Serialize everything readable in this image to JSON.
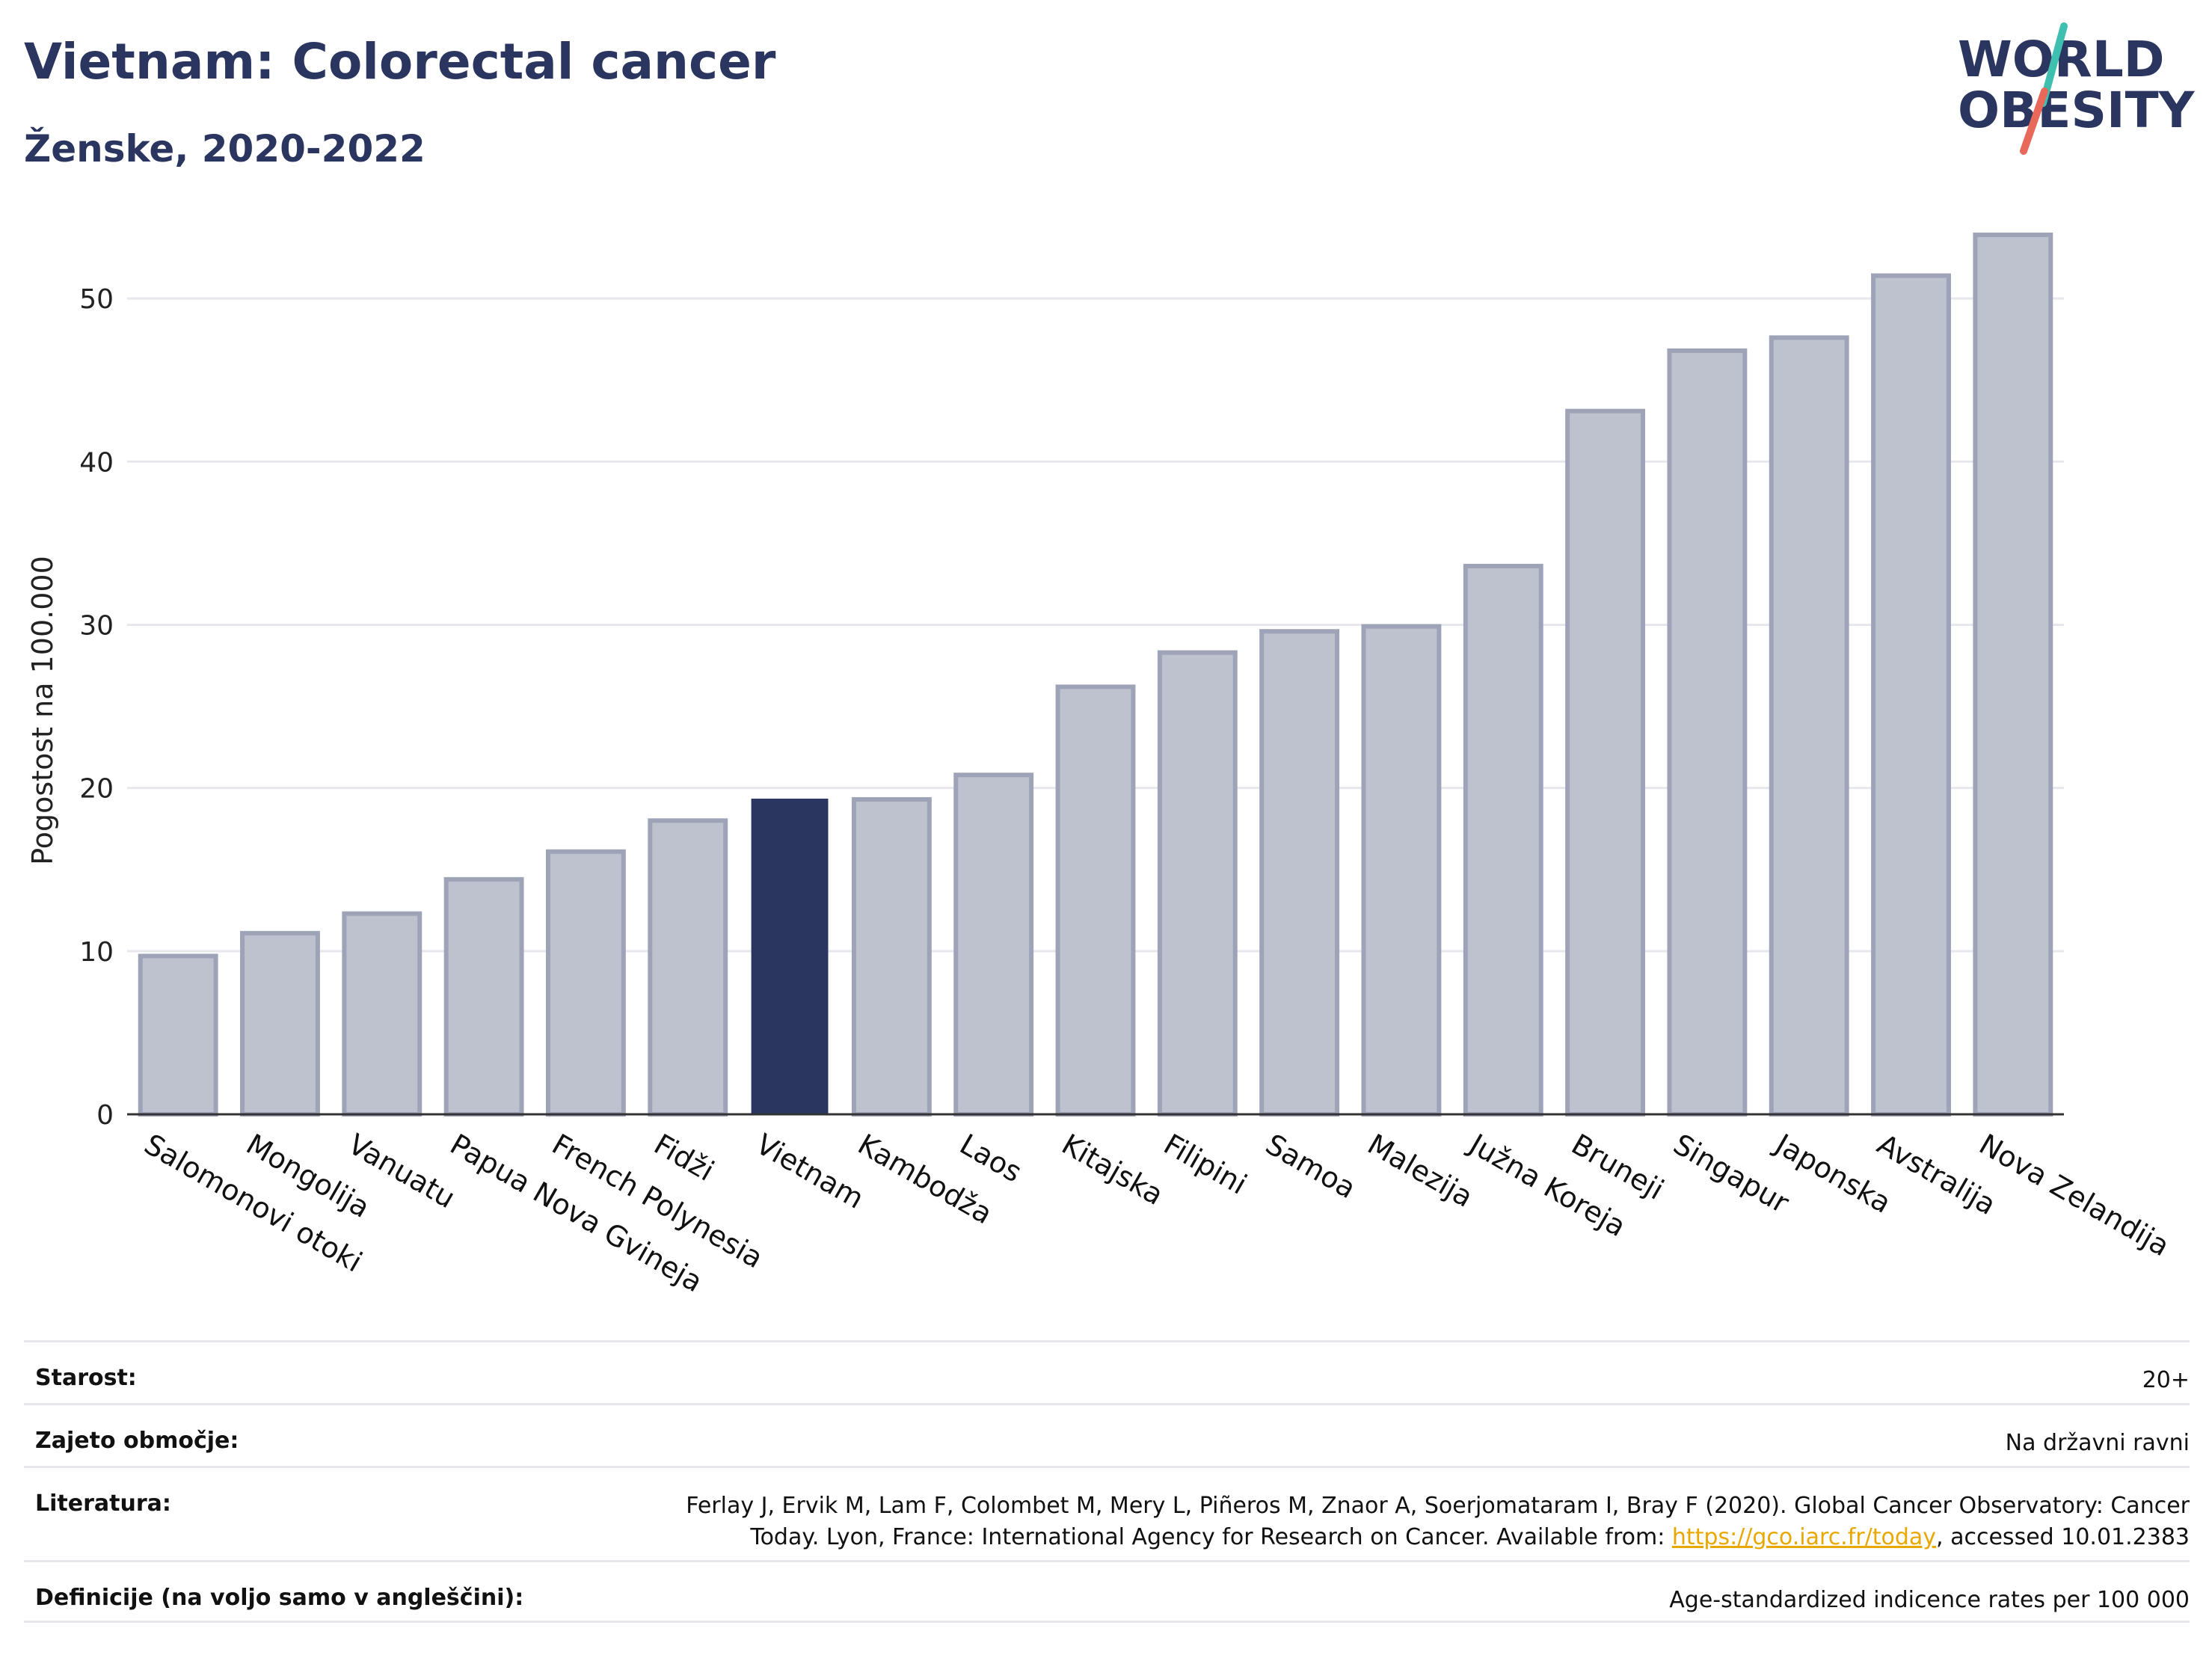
{
  "header": {
    "title": "Vietnam: Colorectal cancer",
    "subtitle": "Ženske, 2020-2022"
  },
  "logo": {
    "line1": "WORLD",
    "line2": "OBESITY",
    "accent_colors": [
      "#3fbfb0",
      "#e8685a"
    ]
  },
  "colors": {
    "highlight": "#2a3560",
    "bar": "#bec1ce",
    "bar_border": "#9ea3b8",
    "grid": "#e6e8ee",
    "axis": "#333333"
  },
  "chart_data": {
    "type": "bar",
    "title": "Vietnam: Colorectal cancer",
    "subtitle": "Ženske, 2020-2022",
    "ylabel": "Pogostost na 100.000",
    "xlabel": "",
    "ylim": [
      0,
      55
    ],
    "yticks": [
      0,
      10,
      20,
      30,
      40,
      50
    ],
    "grid": true,
    "highlight": "Vietnam",
    "categories": [
      "Salomonovi otoki",
      "Mongolija",
      "Vanuatu",
      "Papua Nova Gvineja",
      "French Polynesia",
      "Fidži",
      "Vietnam",
      "Kambodža",
      "Laos",
      "Kitajska",
      "Filipini",
      "Samoa",
      "Malezija",
      "Južna Koreja",
      "Bruneji",
      "Singapur",
      "Japonska",
      "Avstralija",
      "Nova Zelandija"
    ],
    "values": [
      9.7,
      11.1,
      12.3,
      14.4,
      16.1,
      18.0,
      19.3,
      19.3,
      20.8,
      26.2,
      28.3,
      29.6,
      29.9,
      33.6,
      43.1,
      46.8,
      47.6,
      51.4,
      53.9
    ]
  },
  "meta": {
    "rows": [
      {
        "label": "Starost:",
        "value": "20+"
      },
      {
        "label": "Zajeto območje:",
        "value": "Na državni ravni"
      },
      {
        "label": "Literatura:",
        "value_pre": "Ferlay J, Ervik M, Lam F, Colombet M, Mery L, Piñeros M, Znaor A, Soerjomataram I, Bray F (2020). Global Cancer Observatory: Cancer Today. Lyon, France: International Agency for Research on Cancer. Available from: ",
        "link": "https://gco.iarc.fr/today",
        "value_post": ", accessed 10.01.2383"
      },
      {
        "label": "Definicije (na voljo samo v angleščini):",
        "value": "Age-standardized indicence rates per 100 000"
      }
    ]
  }
}
